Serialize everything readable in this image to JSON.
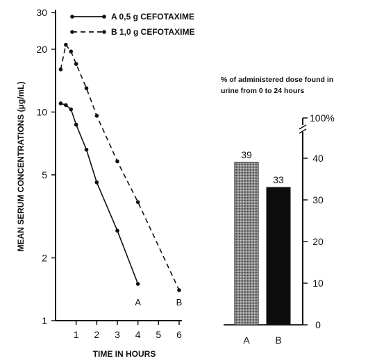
{
  "chart_data": [
    {
      "type": "line",
      "ylabel": "MEAN SERUM CONCENTRATIONS (μg/mL)",
      "xlabel": "TIME IN HOURS",
      "yscale": "log",
      "ylim": [
        1,
        30
      ],
      "xlim": [
        0,
        6
      ],
      "y_ticks": [
        "30",
        "20",
        "10",
        "5",
        "2",
        "1"
      ],
      "x_ticks": [
        "1",
        "2",
        "3",
        "4",
        "5",
        "6"
      ],
      "legend_position": "top-left",
      "grid": false,
      "series": [
        {
          "name": "A 0,5 g CEFOTAXIME",
          "end_label": "A",
          "style": "solid",
          "x": [
            0.25,
            0.5,
            0.75,
            1.0,
            1.5,
            2.0,
            3.0,
            4.0
          ],
          "y": [
            11,
            10.8,
            10.3,
            8.7,
            6.6,
            4.6,
            2.7,
            1.5
          ]
        },
        {
          "name": "B 1,0 g CEFOTAXIME",
          "end_label": "B",
          "style": "dashed",
          "x": [
            0.25,
            0.5,
            0.75,
            1.0,
            1.5,
            2.0,
            3.0,
            4.0,
            6.0
          ],
          "y": [
            16,
            21,
            19.5,
            17,
            13,
            9.6,
            5.8,
            3.7,
            1.4
          ]
        }
      ]
    },
    {
      "type": "bar",
      "title": "% of administered dose found in urine from 0 to 24 hours",
      "categories": [
        "A",
        "B"
      ],
      "values": [
        39,
        33
      ],
      "value_labels": [
        "39",
        "33"
      ],
      "ylim": [
        0,
        40
      ],
      "y_ticks": [
        "0",
        "10",
        "20",
        "30",
        "40"
      ],
      "y_break_label": "100%",
      "y_axis_side": "right",
      "colors": {
        "A": "#8a8a8a",
        "B": "#0d0d0d"
      }
    }
  ]
}
